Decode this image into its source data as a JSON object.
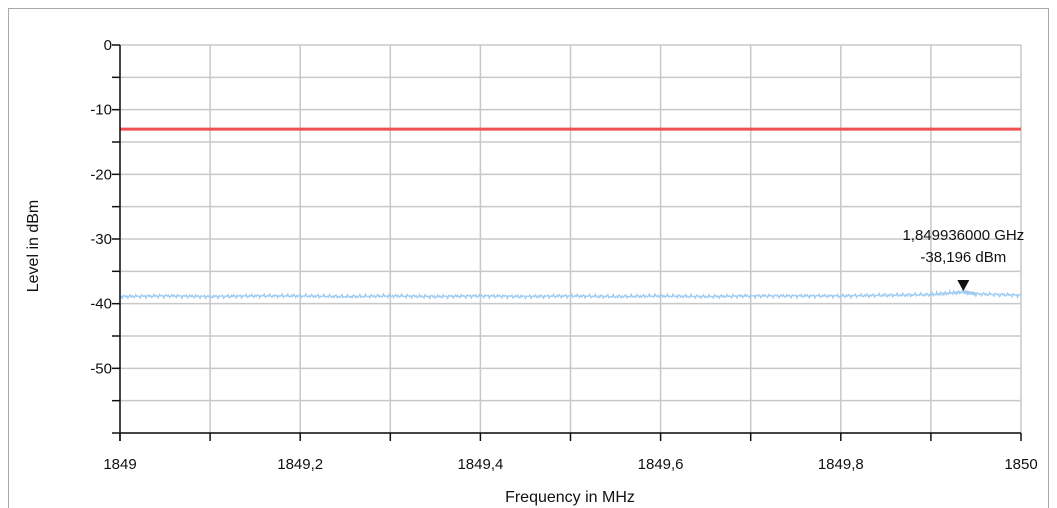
{
  "chart_data": {
    "type": "line",
    "xlabel": "Frequency in MHz",
    "ylabel": "Level in dBm",
    "xlim": [
      1849,
      1850
    ],
    "ylim": [
      -60,
      0
    ],
    "x_ticks": [
      1849,
      1849.2,
      1849.4,
      1849.6,
      1849.8,
      1850
    ],
    "x_tick_labels": [
      "1849",
      "1849,2",
      "1849,4",
      "1849,6",
      "1849,8",
      "1850"
    ],
    "y_ticks": [
      0,
      -10,
      -20,
      -30,
      -40,
      -50
    ],
    "y_tick_labels": [
      "0",
      "-10",
      "-20",
      "-30",
      "-40",
      "-50"
    ],
    "grid": true,
    "limit_line": {
      "value": -13,
      "color": "#f05050"
    },
    "series": [
      {
        "color": "#9ecbf0",
        "x": [
          1849.0,
          1849.05,
          1849.1,
          1849.15,
          1849.2,
          1849.25,
          1849.3,
          1849.35,
          1849.4,
          1849.45,
          1849.5,
          1849.55,
          1849.6,
          1849.65,
          1849.7,
          1849.75,
          1849.8,
          1849.85,
          1849.9,
          1849.936,
          1849.95,
          1850.0
        ],
        "values": [
          -38.9,
          -38.8,
          -38.9,
          -38.8,
          -38.8,
          -38.9,
          -38.8,
          -38.9,
          -38.8,
          -38.9,
          -38.8,
          -38.9,
          -38.8,
          -38.9,
          -38.8,
          -38.8,
          -38.8,
          -38.7,
          -38.6,
          -38.2,
          -38.5,
          -38.7
        ]
      }
    ],
    "marker": {
      "x": 1849.936,
      "y": -38.196,
      "label_freq": "1,849936000 GHz",
      "label_level": "-38,196 dBm"
    }
  }
}
